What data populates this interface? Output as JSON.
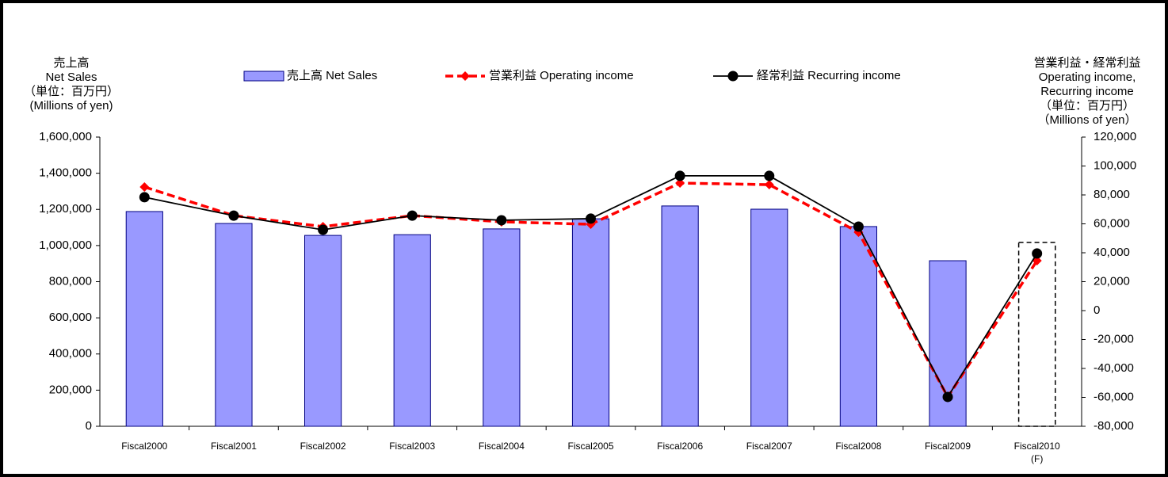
{
  "chart_data": {
    "type": "bar-line",
    "categories": [
      "Fiscal2000",
      "Fiscal2001",
      "Fiscal2002",
      "Fiscal2003",
      "Fiscal2004",
      "Fiscal2005",
      "Fiscal2006",
      "Fiscal2007",
      "Fiscal2008",
      "Fiscal2009",
      "Fiscal2010"
    ],
    "category_annotation": "(F)",
    "dashed_categories": [
      10
    ],
    "y_axis_title": [
      "売上高",
      "Net Sales",
      "（単位：百万円）",
      "(Millions of yen)"
    ],
    "y2_axis_title": [
      "営業利益・経常利益",
      "Operating income,",
      "Recurring income",
      "（単位：百万円）",
      "（Millions of yen）"
    ],
    "ylim": [
      0,
      1600000
    ],
    "yticks": [
      0,
      {
        "value": 200000,
        "label": "200,000"
      },
      {
        "value": 400000,
        "label": "400,000"
      },
      {
        "value": 600000,
        "label": "600,000"
      },
      {
        "value": 800000,
        "label": "800,000"
      },
      {
        "value": 1000000,
        "label": "1,000,000"
      },
      {
        "value": 1200000,
        "label": "1,200,000"
      },
      {
        "value": 1400000,
        "label": "1,400,000"
      },
      {
        "value": 1600000,
        "label": "1,600,000"
      }
    ],
    "y2lim": [
      -80000,
      120000
    ],
    "y2ticks": [
      {
        "value": -80000,
        "label": "-80,000"
      },
      {
        "value": -60000,
        "label": "-60,000"
      },
      {
        "value": -40000,
        "label": "-40,000"
      },
      {
        "value": -20000,
        "label": "-20,000"
      },
      0,
      {
        "value": 20000,
        "label": "20,000"
      },
      {
        "value": 40000,
        "label": "40,000"
      },
      {
        "value": 60000,
        "label": "60,000"
      },
      {
        "value": 80000,
        "label": "80,000"
      },
      {
        "value": 100000,
        "label": "100,000"
      },
      {
        "value": 120000,
        "label": "120,000"
      }
    ],
    "negative_tick_color": "#ff0000",
    "series": [
      {
        "name": "売上高 Net Sales",
        "kind": "bar",
        "color": "#9999ff",
        "edge": "#000080",
        "values": [
          1188000,
          1122000,
          1056000,
          1060000,
          1092000,
          1148000,
          1219000,
          1201000,
          1105000,
          916000,
          1017000
        ]
      },
      {
        "name": "営業利益 Operating income",
        "kind": "line",
        "axis": "y2",
        "color": "#ff0000",
        "dashed": true,
        "marker": "diamond",
        "values": [
          85500,
          65700,
          58100,
          65700,
          61400,
          59700,
          88200,
          87100,
          54200,
          -59700,
          34500
        ]
      },
      {
        "name": "経常利益 Recurring income",
        "kind": "line",
        "axis": "y2",
        "color": "#000000",
        "dashed": false,
        "marker": "circle",
        "values": [
          78400,
          65700,
          55900,
          65700,
          62500,
          63600,
          93200,
          93200,
          58100,
          -59700,
          39500
        ]
      }
    ]
  }
}
